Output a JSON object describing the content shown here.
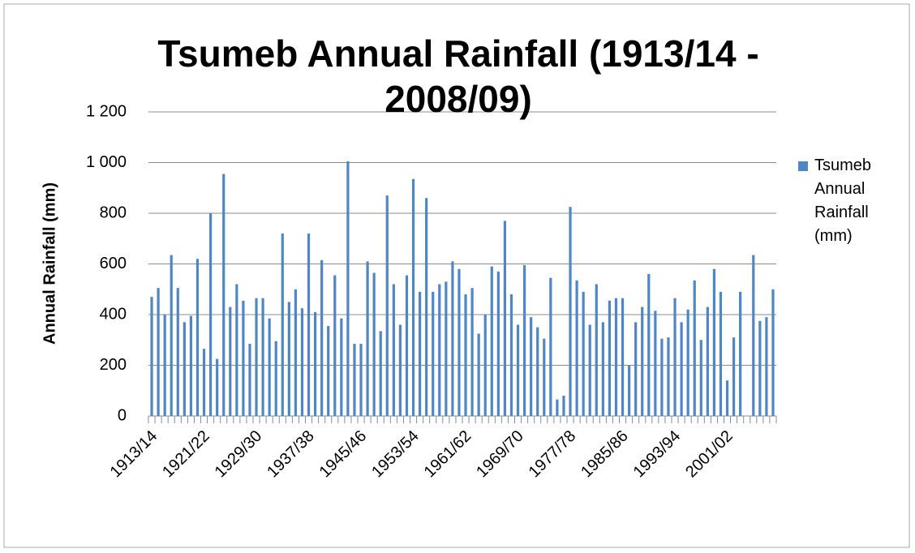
{
  "chart_data": {
    "type": "bar",
    "title": "Tsumeb Annual Rainfall (1913/14 - 2008/09)",
    "y_axis_label": "Annual Rainfall (mm)",
    "categories": [
      "1913/14",
      null,
      null,
      null,
      null,
      null,
      null,
      null,
      "1921/22",
      null,
      null,
      null,
      null,
      null,
      null,
      null,
      "1929/30",
      null,
      null,
      null,
      null,
      null,
      null,
      null,
      "1937/38",
      null,
      null,
      null,
      null,
      null,
      null,
      null,
      "1945/46",
      null,
      null,
      null,
      null,
      null,
      null,
      null,
      "1953/54",
      null,
      null,
      null,
      null,
      null,
      null,
      null,
      "1961/62",
      null,
      null,
      null,
      null,
      null,
      null,
      null,
      "1969/70",
      null,
      null,
      null,
      null,
      null,
      null,
      null,
      "1977/78",
      null,
      null,
      null,
      null,
      null,
      null,
      null,
      "1985/86",
      null,
      null,
      null,
      null,
      null,
      null,
      null,
      "1993/94",
      null,
      null,
      null,
      null,
      null,
      null,
      null,
      "2001/02",
      null,
      null,
      null,
      null,
      null,
      null,
      null
    ],
    "series": [
      {
        "name": "Tsumeb Annual Rainfall (mm)",
        "color": "#4f86c6",
        "values": [
          470,
          505,
          400,
          635,
          505,
          370,
          395,
          620,
          265,
          800,
          225,
          955,
          430,
          520,
          455,
          285,
          465,
          465,
          385,
          295,
          720,
          450,
          500,
          425,
          720,
          410,
          615,
          355,
          555,
          385,
          1005,
          285,
          285,
          610,
          565,
          335,
          870,
          520,
          360,
          555,
          935,
          490,
          860,
          490,
          520,
          530,
          610,
          580,
          480,
          505,
          325,
          400,
          590,
          570,
          770,
          480,
          360,
          595,
          390,
          350,
          305,
          545,
          65,
          80,
          825,
          535,
          490,
          360,
          520,
          370,
          455,
          465,
          465,
          200,
          370,
          430,
          560,
          415,
          305,
          310,
          465,
          370,
          420,
          535,
          300,
          430,
          580,
          490,
          140,
          310,
          490,
          null,
          635,
          375,
          390,
          500
        ]
      }
    ],
    "ylim": [
      0,
      1200
    ],
    "yticks": [
      0,
      200,
      400,
      600,
      800,
      {
        "value": 1000,
        "label": "1 000"
      },
      {
        "value": 1200,
        "label": "1 200"
      }
    ],
    "grid": true,
    "legend": "right"
  }
}
